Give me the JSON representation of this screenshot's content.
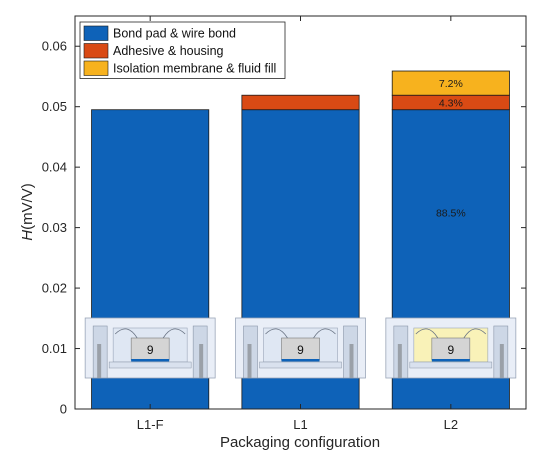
{
  "chart_data": {
    "type": "bar",
    "stacked": true,
    "categories": [
      "L1-F",
      "L1",
      "L2"
    ],
    "series": [
      {
        "name": "Bond pad & wire bond",
        "values": [
          0.0495,
          0.0495,
          0.0495
        ],
        "color": "#0e62b8"
      },
      {
        "name": "Adhesive & housing",
        "values": [
          0.0,
          0.0024,
          0.0024
        ],
        "color": "#d94a14"
      },
      {
        "name": "Isolation membrane & fluid fill",
        "values": [
          0.0,
          0.0,
          0.004
        ],
        "color": "#f7b21e"
      }
    ],
    "segment_labels": [
      {
        "category": "L2",
        "series": 0,
        "text": "88.5%"
      },
      {
        "category": "L2",
        "series": 1,
        "text": "4.3%"
      },
      {
        "category": "L2",
        "series": 2,
        "text": "7.2%"
      }
    ],
    "xlabel": "Packaging configuration",
    "ylabel_italic": "H",
    "ylabel_rest": "(mV/V)",
    "ylim": [
      0,
      0.065
    ],
    "yticks": [
      0,
      0.01,
      0.02,
      0.03,
      0.04,
      0.05,
      0.06
    ],
    "ytick_labels": [
      "0",
      "0.01",
      "0.02",
      "0.03",
      "0.04",
      "0.05",
      "0.06"
    ],
    "grid": false,
    "legend": "top-left",
    "inset_chip_label": "9"
  }
}
